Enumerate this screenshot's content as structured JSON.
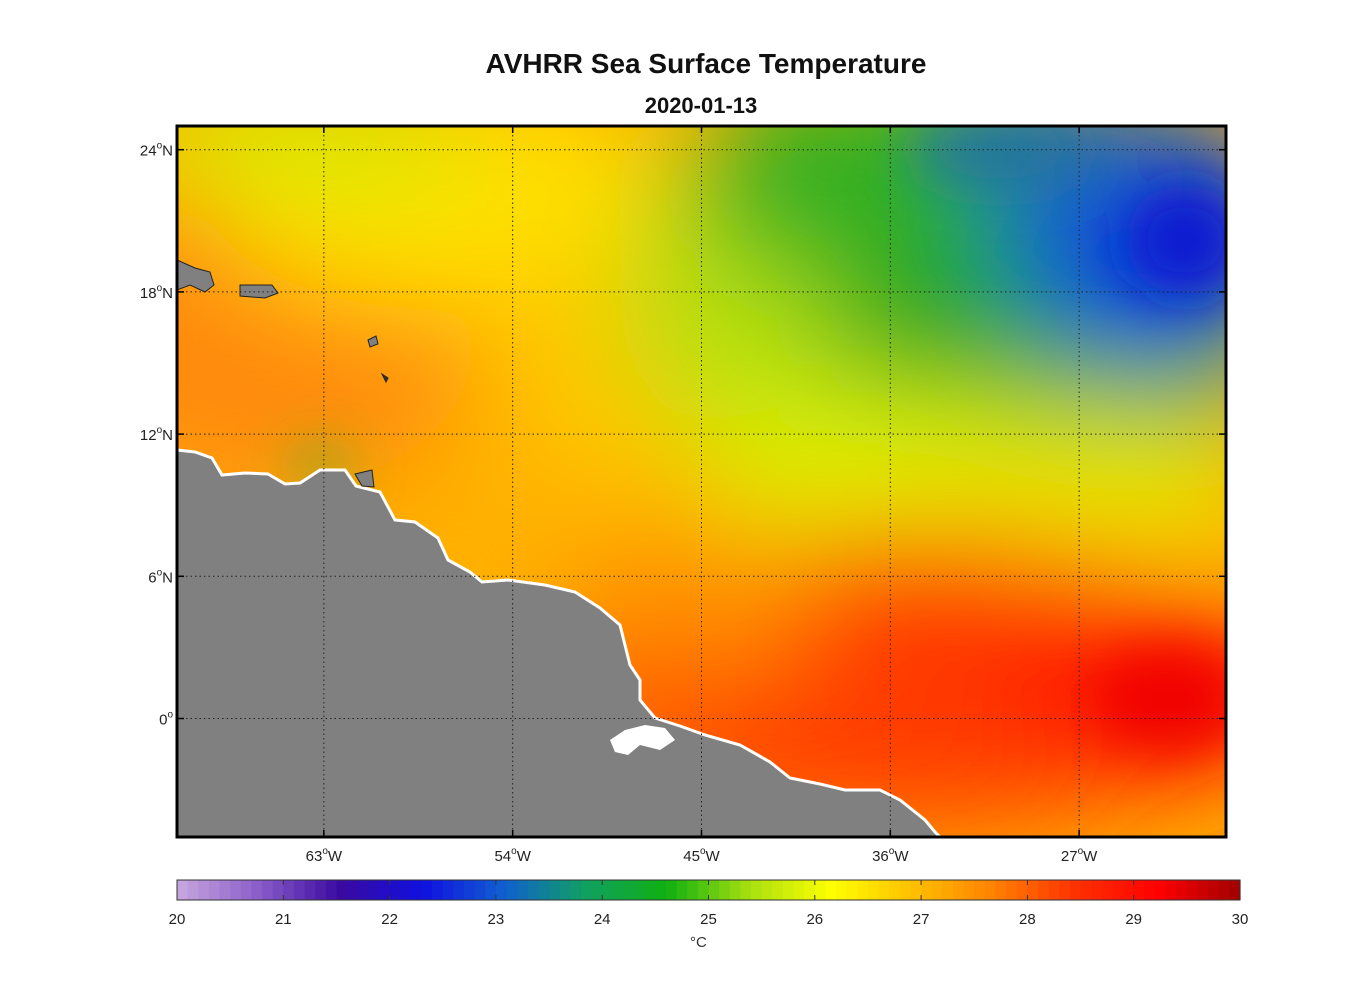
{
  "title": "AVHRR Sea Surface Temperature",
  "subtitle": "2020-01-13",
  "map": {
    "lon_range": [
      -70,
      -20
    ],
    "lat_range": [
      -5,
      25
    ],
    "lon_ticks": [
      {
        "value": -63,
        "num": "63",
        "hemi": "W"
      },
      {
        "value": -54,
        "num": "54",
        "hemi": "W"
      },
      {
        "value": -45,
        "num": "45",
        "hemi": "W"
      },
      {
        "value": -36,
        "num": "36",
        "hemi": "W"
      },
      {
        "value": -27,
        "num": "27",
        "hemi": "W"
      }
    ],
    "lat_ticks": [
      {
        "value": 24,
        "num": "24",
        "hemi": "N"
      },
      {
        "value": 18,
        "num": "18",
        "hemi": "N"
      },
      {
        "value": 12,
        "num": "12",
        "hemi": "N"
      },
      {
        "value": 6,
        "num": "6",
        "hemi": "N"
      },
      {
        "value": 0,
        "num": "0",
        "hemi": ""
      }
    ],
    "degree_symbol": "o",
    "grid": "dotted",
    "land_color": "#808080"
  },
  "colorbar": {
    "min": 20,
    "max": 30,
    "tick_labels": [
      "20",
      "21",
      "22",
      "23",
      "24",
      "25",
      "26",
      "27",
      "28",
      "29",
      "30"
    ],
    "unit": "°C",
    "colors": [
      "#c8a8e0",
      "#8a5cc8",
      "#3a0aa0",
      "#1010e0",
      "#1060d0",
      "#10a060",
      "#10b010",
      "#a8e010",
      "#ffff00",
      "#ffc000",
      "#ff8000",
      "#ff3000",
      "#ff0000",
      "#a00000"
    ]
  }
}
